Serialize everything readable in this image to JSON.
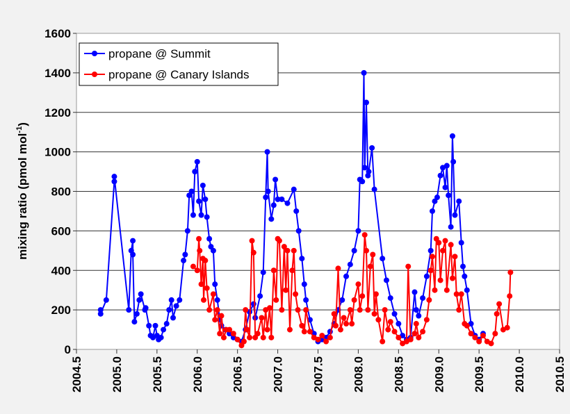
{
  "chart_data": {
    "type": "line",
    "title": "",
    "xlabel": "",
    "ylabel": "mixing ratio (pmol mol",
    "ylabel_sup": "-1",
    "ylabel_close": ")",
    "xlim": [
      2004.5,
      2010.5
    ],
    "ylim": [
      0,
      1600
    ],
    "xticks": [
      "2004.5",
      "2005.0",
      "2005.5",
      "2006.0",
      "2006.5",
      "2007.0",
      "2007.5",
      "2008.0",
      "2008.5",
      "2009.0",
      "2009.5",
      "2010.0",
      "2010.5"
    ],
    "yticks": [
      "0",
      "200",
      "400",
      "600",
      "800",
      "1000",
      "1200",
      "1400",
      "1600"
    ],
    "grid": "horizontal",
    "legend_position": "top-left",
    "series": [
      {
        "name": "propane @ Summit",
        "color": "#0000ff",
        "x": [
          2004.8,
          2004.8,
          2004.87,
          2004.97,
          2004.97,
          2005.15,
          2005.18,
          2005.2,
          2005.2,
          2005.22,
          2005.25,
          2005.28,
          2005.3,
          2005.35,
          2005.36,
          2005.4,
          2005.42,
          2005.45,
          2005.48,
          2005.5,
          2005.52,
          2005.55,
          2005.58,
          2005.62,
          2005.65,
          2005.68,
          2005.7,
          2005.74,
          2005.78,
          2005.83,
          2005.85,
          2005.88,
          2005.9,
          2005.93,
          2005.95,
          2005.97,
          2006.0,
          2006.02,
          2006.05,
          2006.07,
          2006.1,
          2006.12,
          2006.15,
          2006.17,
          2006.2,
          2006.22,
          2006.25,
          2006.28,
          2006.3,
          2006.35,
          2006.4,
          2006.45,
          2006.5,
          2006.55,
          2006.6,
          2006.65,
          2006.7,
          2006.72,
          2006.78,
          2006.82,
          2006.85,
          2006.87,
          2006.88,
          2006.92,
          2006.95,
          2006.97,
          2007.0,
          2007.05,
          2007.12,
          2007.2,
          2007.23,
          2007.26,
          2007.3,
          2007.33,
          2007.35,
          2007.4,
          2007.45,
          2007.5,
          2007.55,
          2007.6,
          2007.65,
          2007.7,
          2007.75,
          2007.8,
          2007.85,
          2007.9,
          2007.95,
          2008.0,
          2008.02,
          2008.05,
          2008.07,
          2008.08,
          2008.1,
          2008.12,
          2008.13,
          2008.17,
          2008.2,
          2008.3,
          2008.35,
          2008.4,
          2008.45,
          2008.5,
          2008.55,
          2008.6,
          2008.65,
          2008.7,
          2008.72,
          2008.75,
          2008.8,
          2008.85,
          2008.9,
          2008.92,
          2008.95,
          2008.98,
          2009.02,
          2009.05,
          2009.08,
          2009.1,
          2009.12,
          2009.15,
          2009.17,
          2009.18,
          2009.2,
          2009.25,
          2009.28,
          2009.3,
          2009.32,
          2009.35,
          2009.4,
          2009.45,
          2009.5,
          2009.55
        ],
        "y": [
          200,
          180,
          250,
          850,
          875,
          200,
          500,
          550,
          480,
          140,
          180,
          250,
          280,
          200,
          210,
          120,
          70,
          60,
          120,
          70,
          50,
          60,
          100,
          130,
          200,
          250,
          160,
          220,
          250,
          450,
          480,
          600,
          780,
          800,
          680,
          900,
          950,
          750,
          680,
          830,
          760,
          670,
          560,
          520,
          500,
          330,
          250,
          150,
          120,
          100,
          80,
          60,
          50,
          40,
          100,
          190,
          230,
          160,
          270,
          390,
          770,
          1000,
          800,
          660,
          730,
          860,
          760,
          760,
          740,
          810,
          700,
          600,
          460,
          330,
          250,
          150,
          80,
          40,
          50,
          60,
          90,
          130,
          200,
          250,
          370,
          430,
          500,
          600,
          860,
          850,
          1400,
          920,
          1250,
          880,
          900,
          1020,
          810,
          460,
          350,
          260,
          180,
          130,
          70,
          50,
          60,
          290,
          200,
          170,
          260,
          370,
          500,
          700,
          750,
          770,
          880,
          920,
          820,
          930,
          780,
          620,
          1080,
          950,
          680,
          750,
          540,
          420,
          370,
          300,
          130,
          70,
          50,
          80
        ]
      },
      {
        "name": "propane @ Canary Islands",
        "color": "#ff0000",
        "x": [
          2005.95,
          2006.0,
          2006.02,
          2006.03,
          2006.05,
          2006.07,
          2006.08,
          2006.1,
          2006.12,
          2006.15,
          2006.2,
          2006.22,
          2006.25,
          2006.28,
          2006.3,
          2006.33,
          2006.36,
          2006.4,
          2006.45,
          2006.5,
          2006.55,
          2006.58,
          2006.6,
          2006.62,
          2006.65,
          2006.68,
          2006.7,
          2006.72,
          2006.75,
          2006.8,
          2006.82,
          2006.85,
          2006.87,
          2006.9,
          2006.92,
          2006.95,
          2006.98,
          2007.0,
          2007.02,
          2007.05,
          2007.08,
          2007.1,
          2007.12,
          2007.15,
          2007.18,
          2007.2,
          2007.22,
          2007.25,
          2007.3,
          2007.33,
          2007.35,
          2007.4,
          2007.45,
          2007.5,
          2007.55,
          2007.6,
          2007.65,
          2007.7,
          2007.72,
          2007.75,
          2007.78,
          2007.82,
          2007.85,
          2007.9,
          2007.92,
          2007.95,
          2008.0,
          2008.02,
          2008.05,
          2008.08,
          2008.1,
          2008.12,
          2008.15,
          2008.18,
          2008.2,
          2008.22,
          2008.25,
          2008.3,
          2008.33,
          2008.37,
          2008.4,
          2008.45,
          2008.5,
          2008.55,
          2008.6,
          2008.62,
          2008.65,
          2008.7,
          2008.72,
          2008.75,
          2008.8,
          2008.85,
          2008.88,
          2008.9,
          2008.92,
          2008.95,
          2008.97,
          2009.0,
          2009.02,
          2009.05,
          2009.08,
          2009.1,
          2009.15,
          2009.17,
          2009.2,
          2009.22,
          2009.25,
          2009.28,
          2009.32,
          2009.35,
          2009.4,
          2009.45,
          2009.5,
          2009.55,
          2009.6,
          2009.65,
          2009.7,
          2009.72,
          2009.75,
          2009.8,
          2009.85,
          2009.88,
          2009.89
        ],
        "y": [
          420,
          400,
          560,
          500,
          330,
          460,
          250,
          450,
          310,
          200,
          280,
          150,
          200,
          80,
          170,
          60,
          100,
          100,
          80,
          50,
          20,
          40,
          200,
          100,
          60,
          550,
          490,
          60,
          80,
          160,
          60,
          200,
          100,
          210,
          60,
          400,
          250,
          560,
          550,
          200,
          520,
          300,
          500,
          100,
          400,
          500,
          280,
          200,
          120,
          90,
          200,
          90,
          60,
          50,
          70,
          40,
          60,
          180,
          120,
          410,
          100,
          160,
          130,
          200,
          130,
          250,
          330,
          200,
          270,
          580,
          500,
          200,
          420,
          480,
          180,
          280,
          150,
          40,
          200,
          100,
          140,
          90,
          60,
          30,
          40,
          420,
          50,
          80,
          130,
          60,
          90,
          150,
          250,
          400,
          470,
          300,
          560,
          540,
          350,
          500,
          550,
          300,
          530,
          360,
          470,
          280,
          200,
          280,
          130,
          120,
          80,
          60,
          40,
          70,
          40,
          30,
          80,
          180,
          230,
          100,
          110,
          270,
          390
        ]
      }
    ]
  }
}
